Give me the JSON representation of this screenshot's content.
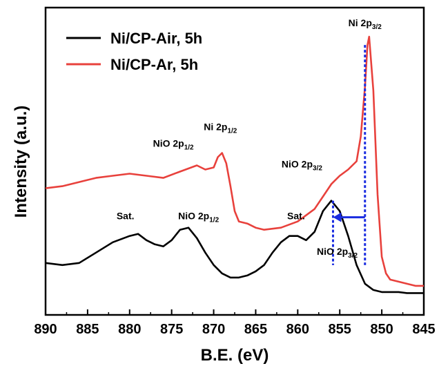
{
  "chart_data": {
    "type": "line",
    "xlabel": "B.E. (eV)",
    "ylabel": "Intensity (a.u.)",
    "xlim": [
      890,
      845
    ],
    "x_ticks": [
      890,
      885,
      880,
      875,
      870,
      865,
      860,
      855,
      850,
      845
    ],
    "y_ticks_shown": false,
    "legend": "top-left",
    "series": [
      {
        "name": "Ni/CP-Air, 5h",
        "color": "#000000",
        "x": [
          890,
          888,
          886,
          884,
          882,
          880,
          879,
          878,
          877,
          876,
          875,
          874,
          873,
          872,
          871,
          870,
          869,
          868,
          867,
          866,
          865,
          864,
          863,
          862,
          861,
          860,
          859,
          858,
          857,
          856,
          855,
          854,
          853,
          852,
          851,
          850,
          849,
          848,
          847,
          846,
          845
        ],
        "y": [
          0.17,
          0.16,
          0.17,
          0.22,
          0.27,
          0.3,
          0.31,
          0.28,
          0.26,
          0.25,
          0.28,
          0.33,
          0.34,
          0.29,
          0.22,
          0.16,
          0.12,
          0.1,
          0.1,
          0.11,
          0.13,
          0.16,
          0.22,
          0.27,
          0.3,
          0.3,
          0.28,
          0.32,
          0.42,
          0.47,
          0.42,
          0.3,
          0.16,
          0.07,
          0.04,
          0.03,
          0.03,
          0.03,
          0.025,
          0.025,
          0.025
        ]
      },
      {
        "name": "Ni/CP-Ar, 5h",
        "color": "#e8413c",
        "x": [
          890,
          888,
          886,
          884,
          882,
          880,
          878,
          876,
          874,
          872,
          871,
          870,
          869.5,
          869,
          868.5,
          868,
          867.5,
          867,
          866,
          865,
          864,
          862,
          860,
          858,
          857,
          856,
          855,
          854,
          853,
          852.5,
          852,
          851.7,
          851.5,
          851,
          850.5,
          850,
          849.5,
          849,
          848,
          847,
          846,
          845
        ],
        "y": [
          0.53,
          0.54,
          0.56,
          0.58,
          0.59,
          0.6,
          0.59,
          0.58,
          0.61,
          0.64,
          0.62,
          0.63,
          0.68,
          0.7,
          0.65,
          0.54,
          0.42,
          0.37,
          0.36,
          0.34,
          0.33,
          0.34,
          0.37,
          0.43,
          0.49,
          0.55,
          0.59,
          0.62,
          0.66,
          0.78,
          1.02,
          1.22,
          1.26,
          1.0,
          0.5,
          0.2,
          0.12,
          0.09,
          0.08,
          0.07,
          0.06,
          0.06
        ]
      }
    ],
    "annotations": [
      {
        "text": "Ni 2p",
        "sub": "3/2",
        "x": 852.0,
        "y": 1.31
      },
      {
        "text": "Ni 2p",
        "sub": "1/2",
        "x": 869.2,
        "y": 0.81
      },
      {
        "text": "NiO 2p",
        "sub": "1/2",
        "x": 874.8,
        "y": 0.73
      },
      {
        "text": "NiO 2p",
        "sub": "3/2",
        "x": 859.5,
        "y": 0.63
      },
      {
        "text": "Sat.",
        "sub": "",
        "x": 880.5,
        "y": 0.38
      },
      {
        "text": "NiO 2p",
        "sub": "1/2",
        "x": 871.8,
        "y": 0.38
      },
      {
        "text": "Sat.",
        "sub": "",
        "x": 860.2,
        "y": 0.38
      },
      {
        "text": "NiO 2p",
        "sub": "3/2",
        "x": 855.3,
        "y": 0.21
      }
    ],
    "markers": {
      "dotted_lines_x": [
        855.8,
        852.0
      ],
      "arrow_from_x": 852.0,
      "arrow_to_x": 855.8,
      "arrow_y": 0.39
    }
  }
}
